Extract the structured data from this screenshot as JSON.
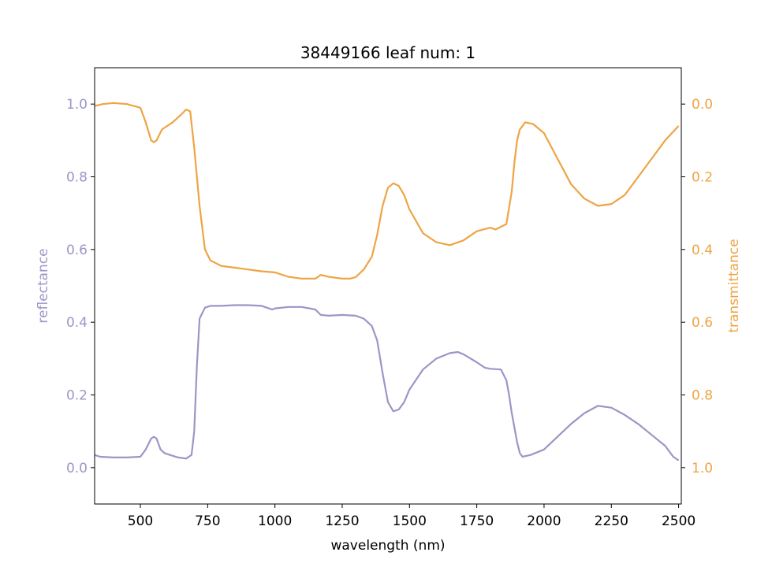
{
  "chart_data": {
    "type": "line",
    "title": "38449166 leaf num: 1",
    "xlabel": "wavelength (nm)",
    "ylabel_left": "reflectance",
    "ylabel_right": "transmittance",
    "xlim": [
      330,
      2510
    ],
    "ylim_left": [
      -0.1,
      1.1
    ],
    "ylim_right_inverted": [
      1.1,
      -0.1
    ],
    "x_ticks": [
      500,
      750,
      1000,
      1250,
      1500,
      1750,
      2000,
      2250,
      2500
    ],
    "y_ticks_left": [
      "0.0",
      "0.2",
      "0.4",
      "0.6",
      "0.8",
      "1.0"
    ],
    "y_ticks_right": [
      "0.0",
      "0.2",
      "0.4",
      "0.6",
      "0.8",
      "1.0"
    ],
    "grid": false,
    "colors": {
      "reflectance": "#9b96c6",
      "transmittance": "#eea444"
    },
    "series": [
      {
        "axis": "left",
        "x": [
          330,
          350,
          400,
          450,
          500,
          520,
          540,
          550,
          560,
          575,
          590,
          610,
          640,
          670,
          690,
          700,
          710,
          720,
          740,
          760,
          800,
          850,
          900,
          950,
          970,
          990,
          1000,
          1050,
          1100,
          1150,
          1170,
          1200,
          1250,
          1300,
          1330,
          1360,
          1380,
          1400,
          1420,
          1440,
          1460,
          1480,
          1500,
          1550,
          1600,
          1650,
          1680,
          1700,
          1750,
          1780,
          1800,
          1840,
          1860,
          1870,
          1880,
          1890,
          1900,
          1910,
          1920,
          1950,
          2000,
          2050,
          2100,
          2150,
          2200,
          2250,
          2300,
          2350,
          2400,
          2450,
          2480,
          2500
        ],
        "values": [
          0.035,
          0.03,
          0.028,
          0.028,
          0.03,
          0.05,
          0.08,
          0.085,
          0.08,
          0.05,
          0.04,
          0.035,
          0.028,
          0.025,
          0.035,
          0.1,
          0.28,
          0.41,
          0.44,
          0.445,
          0.445,
          0.447,
          0.447,
          0.445,
          0.44,
          0.435,
          0.438,
          0.442,
          0.442,
          0.435,
          0.42,
          0.418,
          0.42,
          0.418,
          0.41,
          0.39,
          0.35,
          0.26,
          0.18,
          0.155,
          0.16,
          0.18,
          0.215,
          0.27,
          0.3,
          0.315,
          0.318,
          0.312,
          0.29,
          0.275,
          0.272,
          0.27,
          0.24,
          0.2,
          0.15,
          0.11,
          0.07,
          0.04,
          0.03,
          0.035,
          0.05,
          0.085,
          0.12,
          0.15,
          0.17,
          0.165,
          0.145,
          0.12,
          0.09,
          0.06,
          0.03,
          0.02
        ]
      },
      {
        "axis": "right",
        "x": [
          330,
          360,
          400,
          450,
          500,
          520,
          540,
          550,
          560,
          580,
          600,
          620,
          650,
          670,
          685,
          700,
          720,
          740,
          760,
          800,
          850,
          900,
          950,
          1000,
          1050,
          1100,
          1150,
          1170,
          1200,
          1250,
          1280,
          1300,
          1330,
          1360,
          1380,
          1400,
          1420,
          1440,
          1460,
          1480,
          1500,
          1550,
          1600,
          1650,
          1700,
          1750,
          1800,
          1820,
          1860,
          1880,
          1890,
          1900,
          1910,
          1930,
          1960,
          2000,
          2050,
          2100,
          2150,
          2200,
          2250,
          2300,
          2350,
          2400,
          2450,
          2500
        ],
        "values": [
          0.005,
          0.0,
          -0.003,
          0.0,
          0.01,
          0.05,
          0.1,
          0.105,
          0.1,
          0.07,
          0.06,
          0.05,
          0.03,
          0.015,
          0.02,
          0.12,
          0.28,
          0.4,
          0.43,
          0.445,
          0.45,
          0.455,
          0.46,
          0.463,
          0.475,
          0.48,
          0.48,
          0.47,
          0.475,
          0.48,
          0.48,
          0.476,
          0.455,
          0.42,
          0.36,
          0.28,
          0.23,
          0.218,
          0.225,
          0.25,
          0.29,
          0.355,
          0.38,
          0.388,
          0.375,
          0.35,
          0.34,
          0.345,
          0.33,
          0.24,
          0.16,
          0.1,
          0.07,
          0.05,
          0.055,
          0.08,
          0.15,
          0.22,
          0.26,
          0.28,
          0.275,
          0.25,
          0.2,
          0.15,
          0.1,
          0.06
        ]
      }
    ]
  }
}
